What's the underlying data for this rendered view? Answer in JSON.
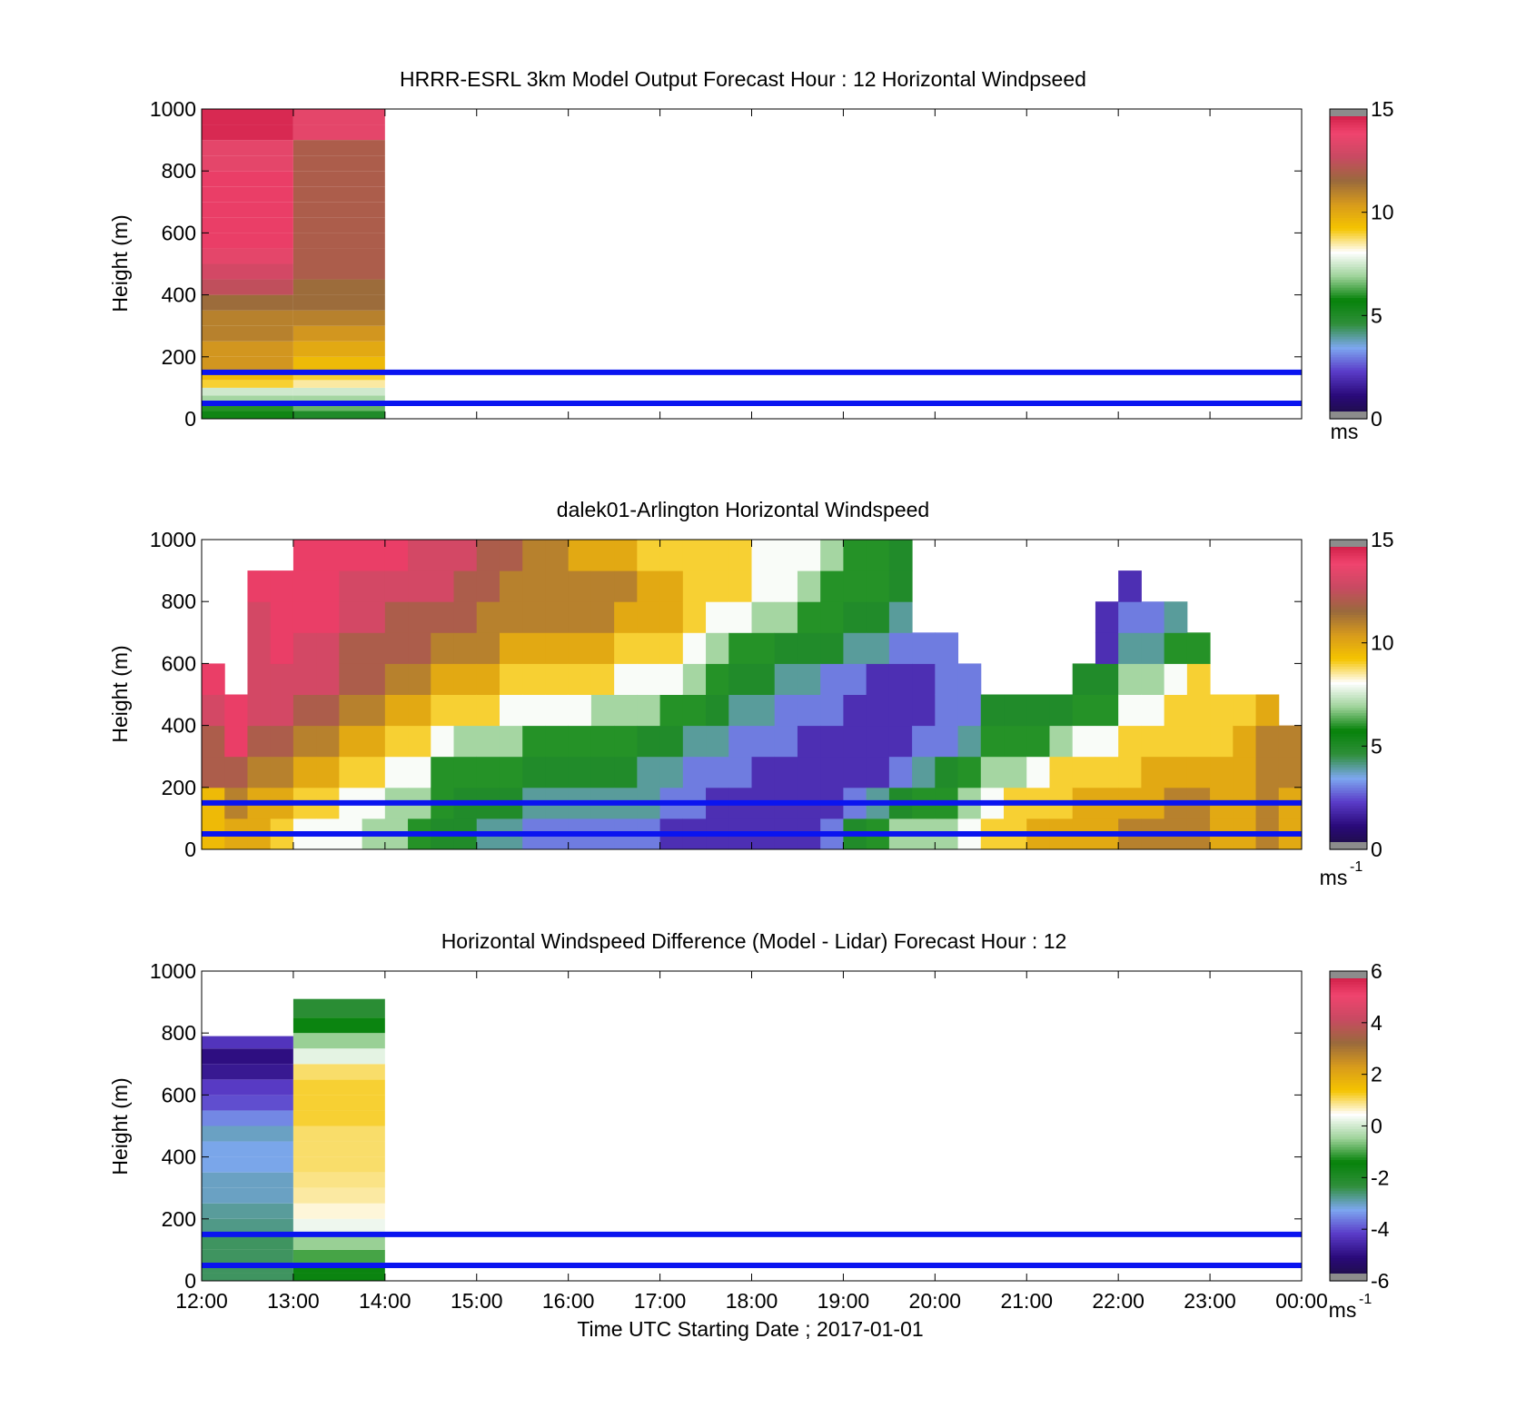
{
  "figure": {
    "xlabel": "Time UTC  Starting Date ; 2017-01-01",
    "x_tick_labels": [
      "12:00",
      "13:00",
      "14:00",
      "15:00",
      "16:00",
      "17:00",
      "18:00",
      "19:00",
      "20:00",
      "21:00",
      "22:00",
      "23:00",
      "00:00"
    ]
  },
  "colormaps": {
    "windspeed": [
      "#1c0f3b",
      "#2a0a7a",
      "#5a3cc8",
      "#7da7f0",
      "#2f8f3a",
      "#06820a",
      "#9fd39b",
      "#ffffff",
      "#f5c400",
      "#d89b1c",
      "#9a6a3c",
      "#c84a62",
      "#f0446e",
      "#c6143c"
    ],
    "difference": [
      "#1c0f3b",
      "#2a0a7a",
      "#5a3cc8",
      "#7da7f0",
      "#2f8f3a",
      "#06820a",
      "#9fd39b",
      "#ffffff",
      "#f5c400",
      "#d89b1c",
      "#9a6a3c",
      "#c84a62",
      "#f0446e",
      "#c6143c"
    ]
  },
  "chart_data": [
    {
      "type": "heatmap",
      "title": "HRRR-ESRL 3km Model Output   Forecast Hour : 12 Horizontal Windpseed",
      "ylabel": "Height (m)",
      "y_tick_labels": [
        "0",
        "200",
        "400",
        "600",
        "800",
        "1000"
      ],
      "ylim": [
        0,
        1000
      ],
      "xlim_hours": [
        12,
        24
      ],
      "colorbar": {
        "ticks": [
          "0",
          "5",
          "10",
          "15"
        ],
        "range": [
          0,
          15
        ],
        "unit": "ms",
        "unit_sup": ""
      },
      "reference_lines_m": [
        50,
        150
      ],
      "columns": [
        {
          "x_start_hour": 12,
          "x_end_hour": 13,
          "height_bins_m": [
            25,
            50,
            75,
            100,
            125,
            150,
            200,
            250,
            300,
            350,
            400,
            450,
            500,
            550,
            600,
            650,
            700,
            750,
            800,
            850,
            900,
            950,
            1000
          ],
          "speeds": [
            5.5,
            6.0,
            7.0,
            7.5,
            9.0,
            9.5,
            10.5,
            10.5,
            11.0,
            11.0,
            11.5,
            12.5,
            13.0,
            13.5,
            14.0,
            14.0,
            14.0,
            14.0,
            14.0,
            13.5,
            13.5,
            14.5,
            14.5
          ]
        },
        {
          "x_start_hour": 13,
          "x_end_hour": 14,
          "height_bins_m": [
            25,
            50,
            75,
            100,
            125,
            150,
            200,
            250,
            300,
            350,
            400,
            450,
            500,
            550,
            600,
            650,
            700,
            750,
            800,
            850,
            900,
            950,
            1000
          ],
          "speeds": [
            5.0,
            6.5,
            7.0,
            7.5,
            8.5,
            9.0,
            9.5,
            10.0,
            10.5,
            11.0,
            11.5,
            11.5,
            12.0,
            12.0,
            12.0,
            12.0,
            12.0,
            12.0,
            12.0,
            12.0,
            12.0,
            13.5,
            13.5
          ]
        }
      ]
    },
    {
      "type": "heatmap",
      "title": "dalek01-Arlington  Horizontal Windspeed",
      "ylabel": "Height (m)",
      "y_tick_labels": [
        "0",
        "200",
        "400",
        "600",
        "800",
        "1000"
      ],
      "ylim": [
        0,
        1000
      ],
      "xlim_hours": [
        12,
        24
      ],
      "colorbar": {
        "ticks": [
          "0",
          "5",
          "10",
          "15"
        ],
        "range": [
          0,
          15
        ],
        "unit": "ms",
        "unit_sup": "-1"
      },
      "reference_lines_m": [
        50,
        150
      ],
      "column_width_hours": 0.25,
      "column_profiles": [
        [
          9.5,
          9.5,
          12,
          12,
          13,
          14,
          null,
          null,
          null,
          null
        ],
        [
          10,
          11,
          12,
          14,
          14,
          null,
          null,
          null,
          null,
          null
        ],
        [
          10,
          10,
          11,
          12,
          13,
          13,
          13,
          13,
          14,
          null
        ],
        [
          9,
          10,
          11,
          12,
          13,
          13,
          14,
          14,
          14,
          null
        ],
        [
          8,
          9,
          10,
          11,
          12,
          13,
          13,
          14,
          14,
          14
        ],
        [
          8,
          9,
          10,
          11,
          12,
          13,
          13,
          14,
          14,
          14
        ],
        [
          8,
          8,
          9,
          10,
          11,
          12,
          12,
          13,
          13,
          14
        ],
        [
          7,
          8,
          9,
          10,
          11,
          12,
          12,
          13,
          13,
          14
        ],
        [
          7,
          7,
          8,
          9,
          10,
          11,
          12,
          12,
          13,
          14
        ],
        [
          6,
          7,
          8,
          9,
          10,
          11,
          12,
          12,
          13,
          13
        ],
        [
          5,
          6,
          6,
          8,
          9,
          10,
          11,
          12,
          13,
          13
        ],
        [
          5,
          5,
          6,
          7,
          9,
          10,
          11,
          12,
          12,
          13
        ],
        [
          4,
          5,
          6,
          7,
          9,
          10,
          11,
          11,
          12,
          12
        ],
        [
          4,
          5,
          6,
          7,
          8,
          9,
          10,
          11,
          11,
          12
        ],
        [
          3,
          4,
          5,
          6,
          8,
          9,
          10,
          11,
          11,
          11
        ],
        [
          3,
          4,
          5,
          6,
          8,
          9,
          10,
          11,
          11,
          11
        ],
        [
          3,
          4,
          5,
          6,
          8,
          9,
          10,
          11,
          11,
          10
        ],
        [
          3,
          4,
          5,
          6,
          7,
          9,
          10,
          11,
          11,
          10
        ],
        [
          3,
          4,
          5,
          6,
          7,
          8,
          9,
          10,
          11,
          10
        ],
        [
          3,
          4,
          4,
          5,
          7,
          8,
          9,
          10,
          10,
          9
        ],
        [
          2,
          3,
          4,
          5,
          6,
          8,
          9,
          10,
          10,
          9
        ],
        [
          2,
          3,
          3,
          4,
          6,
          7,
          8,
          9,
          9,
          9
        ],
        [
          2,
          2,
          3,
          4,
          5,
          6,
          7,
          8,
          9,
          9
        ],
        [
          2,
          2,
          3,
          3,
          4,
          5,
          6,
          8,
          9,
          9
        ],
        [
          2,
          2,
          2,
          3,
          4,
          5,
          6,
          7,
          8,
          8
        ],
        [
          2,
          2,
          2,
          3,
          3,
          4,
          5,
          7,
          8,
          8
        ],
        [
          2,
          2,
          2,
          2,
          3,
          4,
          5,
          6,
          7,
          8
        ],
        [
          3,
          2,
          2,
          2,
          3,
          3,
          5,
          6,
          6,
          7
        ],
        [
          5,
          3,
          2,
          2,
          2,
          3,
          4,
          5,
          6,
          6
        ],
        [
          6,
          4,
          2,
          2,
          2,
          2,
          4,
          5,
          6,
          6
        ],
        [
          7,
          5,
          3,
          2,
          2,
          2,
          3,
          4,
          5,
          5
        ],
        [
          7,
          6,
          4,
          3,
          2,
          2,
          3,
          null,
          null,
          null
        ],
        [
          7,
          6,
          5,
          3,
          3,
          3,
          3,
          null,
          null,
          null
        ],
        [
          8,
          7,
          6,
          4,
          3,
          3,
          null,
          null,
          null,
          null
        ],
        [
          9,
          8,
          7,
          6,
          5,
          null,
          null,
          null,
          null,
          null
        ],
        [
          9,
          9,
          7,
          6,
          5,
          null,
          null,
          null,
          null,
          null
        ],
        [
          10,
          9,
          8,
          6,
          5,
          null,
          null,
          null,
          null,
          null
        ],
        [
          10,
          9,
          9,
          7,
          5,
          null,
          null,
          null,
          null,
          null
        ],
        [
          10,
          10,
          9,
          8,
          6,
          5,
          null,
          null,
          null,
          null
        ],
        [
          10,
          10,
          9,
          8,
          6,
          5,
          2,
          2,
          null,
          null
        ],
        [
          11,
          10,
          9,
          9,
          8,
          7,
          4,
          3,
          2,
          null
        ],
        [
          11,
          10,
          10,
          9,
          8,
          7,
          4,
          3,
          null,
          null
        ],
        [
          11,
          11,
          10,
          9,
          9,
          8,
          6,
          4,
          null,
          null
        ],
        [
          11,
          11,
          10,
          9,
          9,
          9,
          6,
          null,
          null,
          null
        ],
        [
          10,
          10,
          10,
          9,
          9,
          null,
          null,
          null,
          null,
          null
        ],
        [
          10,
          10,
          10,
          10,
          9,
          null,
          null,
          null,
          null,
          null
        ],
        [
          11,
          11,
          11,
          11,
          10,
          null,
          null,
          null,
          null,
          null
        ],
        [
          10,
          10,
          11,
          11,
          null,
          null,
          null,
          null,
          null,
          null
        ]
      ]
    },
    {
      "type": "heatmap",
      "title": "Horizontal Windspeed Difference (Model - Lidar) Forecast Hour : 12",
      "ylabel": "Height (m)",
      "y_tick_labels": [
        "0",
        "200",
        "400",
        "600",
        "800",
        "1000"
      ],
      "ylim": [
        0,
        1000
      ],
      "xlim_hours": [
        12,
        24
      ],
      "colorbar": {
        "ticks": [
          "-6",
          "-4",
          "-2",
          "0",
          "2",
          "4",
          "6"
        ],
        "range": [
          -6,
          6
        ],
        "unit": "ms",
        "unit_sup": "-1"
      },
      "reference_lines_m": [
        50,
        150
      ],
      "columns": [
        {
          "x_start_hour": 12,
          "x_end_hour": 13,
          "height_bins_m": [
            25,
            50,
            100,
            150,
            200,
            250,
            300,
            350,
            400,
            450,
            500,
            550,
            600,
            650,
            700,
            750,
            790
          ],
          "diffs": [
            -2.5,
            -2.5,
            -2.5,
            -2.5,
            -2.7,
            -2.8,
            -3.0,
            -3.0,
            -3.2,
            -3.2,
            -3.0,
            -3.5,
            -4.0,
            -4.2,
            -4.8,
            -5.0,
            -4.3
          ]
        },
        {
          "x_start_hour": 13,
          "x_end_hour": 14,
          "height_bins_m": [
            25,
            50,
            100,
            150,
            200,
            250,
            300,
            350,
            400,
            450,
            500,
            550,
            600,
            650,
            700,
            750,
            800,
            850,
            910
          ],
          "diffs": [
            -1.5,
            -1.5,
            -1.0,
            -0.5,
            0.3,
            0.6,
            0.8,
            0.9,
            1.0,
            1.0,
            1.0,
            1.2,
            1.2,
            1.2,
            1.0,
            0.2,
            -0.5,
            -1.5,
            -2.2
          ]
        }
      ]
    }
  ]
}
